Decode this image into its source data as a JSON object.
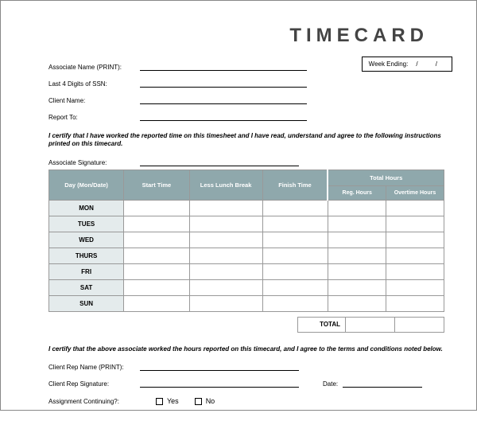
{
  "title": "TIMECARD",
  "fields": {
    "assoc_name": "Associate Name (PRINT):",
    "ssn": "Last 4 Digits of SSN:",
    "client": "Client Name:",
    "report": "Report To:"
  },
  "week_ending_label": "Week Ending:",
  "week_slashes": "/   /",
  "cert1": "I certify that I have worked the reported time on this timesheet and I have read, understand and agree to the following instructions printed on this timecard.",
  "sig_label": "Associate Signature:",
  "table": {
    "headers": {
      "day": "Day (Mon/Date)",
      "start": "Start Time",
      "lunch": "Less Lunch Break",
      "finish": "Finish Time",
      "total": "Total Hours",
      "reg": "Reg. Hours",
      "ot": "Overtime Hours"
    },
    "days": [
      "MON",
      "TUES",
      "WED",
      "THURS",
      "FRI",
      "SAT",
      "SUN"
    ],
    "colors": {
      "header_bg": "#8fa8ac",
      "header_fg": "#ffffff",
      "day_bg": "#e4ebec",
      "border": "#999999"
    }
  },
  "total_label": "TOTAL",
  "cert2": "I certify that the above associate worked the hours reported on this timecard, and I agree to the terms and conditions noted below.",
  "bottom": {
    "rep_name": "Client Rep Name (PRINT):",
    "rep_sig": "Client Rep Signature:",
    "date": "Date:",
    "assign": "Assignment Continuing?:",
    "yes": "Yes",
    "no": "No"
  }
}
